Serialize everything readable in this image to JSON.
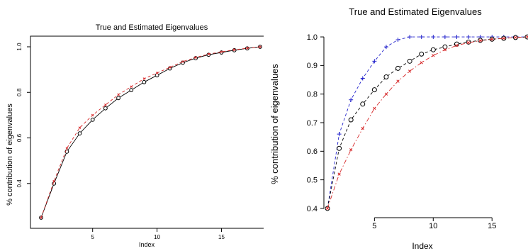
{
  "chart_data": [
    {
      "type": "line",
      "title": "True and Estimated Eigenvalues",
      "xlabel": "Index",
      "ylabel": "% contribution of eigenvalues",
      "xlim": [
        1,
        18
      ],
      "ylim": [
        0.25,
        1.0
      ],
      "xticks": [
        5,
        10,
        15
      ],
      "yticks": [
        0.4,
        0.6,
        0.8,
        1.0
      ],
      "ytick_labels": [
        "0.4",
        "0.6",
        "0.8",
        "1.0"
      ],
      "grid": false,
      "x": [
        1,
        2,
        3,
        4,
        5,
        6,
        7,
        8,
        9,
        10,
        11,
        12,
        13,
        14,
        15,
        16,
        17,
        18
      ],
      "series": [
        {
          "color": "#000000",
          "marker": "circle",
          "line": "solid",
          "values": [
            0.25,
            0.4,
            0.54,
            0.62,
            0.68,
            0.73,
            0.775,
            0.81,
            0.845,
            0.875,
            0.905,
            0.93,
            0.95,
            0.965,
            0.975,
            0.985,
            0.993,
            1.0
          ]
        },
        {
          "color": "#d62728",
          "marker": "star",
          "line": "dashed",
          "values": [
            0.25,
            0.41,
            0.555,
            0.645,
            0.7,
            0.745,
            0.79,
            0.825,
            0.86,
            0.885,
            0.91,
            0.935,
            0.953,
            0.968,
            0.978,
            0.987,
            0.994,
            1.0
          ]
        }
      ]
    },
    {
      "type": "line",
      "title": "True and Estimated Eigenvalues",
      "xlabel": "Index",
      "ylabel": "% contribution of eigenvalues",
      "xlim": [
        1,
        18
      ],
      "ylim": [
        0.38,
        1.02
      ],
      "xticks": [
        5,
        10,
        15
      ],
      "yticks": [
        0.4,
        0.5,
        0.6,
        0.7,
        0.8,
        0.9,
        1.0
      ],
      "ytick_labels": [
        "0.4",
        "0.5",
        "0.6",
        "0.7",
        "0.8",
        "0.9",
        "1.0"
      ],
      "grid": false,
      "x": [
        1,
        2,
        3,
        4,
        5,
        6,
        7,
        8,
        9,
        10,
        11,
        12,
        13,
        14,
        15,
        16,
        17,
        18
      ],
      "series": [
        {
          "color": "#2222cc",
          "marker": "plus",
          "line": "dashed",
          "values": [
            0.4,
            0.66,
            0.78,
            0.855,
            0.915,
            0.965,
            0.99,
            1.0,
            1.0,
            1.0,
            1.0,
            1.0,
            1.0,
            1.0,
            1.0,
            1.0,
            1.0,
            1.0
          ]
        },
        {
          "color": "#000000",
          "marker": "circle",
          "line": "dashed",
          "values": [
            0.4,
            0.61,
            0.71,
            0.765,
            0.815,
            0.86,
            0.89,
            0.915,
            0.94,
            0.955,
            0.965,
            0.975,
            0.982,
            0.988,
            0.992,
            0.995,
            0.998,
            1.0
          ]
        },
        {
          "color": "#d62728",
          "marker": "star",
          "line": "dashdot",
          "values": [
            0.4,
            0.52,
            0.605,
            0.68,
            0.75,
            0.8,
            0.845,
            0.88,
            0.91,
            0.935,
            0.955,
            0.97,
            0.98,
            0.987,
            0.992,
            0.995,
            0.998,
            1.0
          ]
        }
      ]
    }
  ]
}
